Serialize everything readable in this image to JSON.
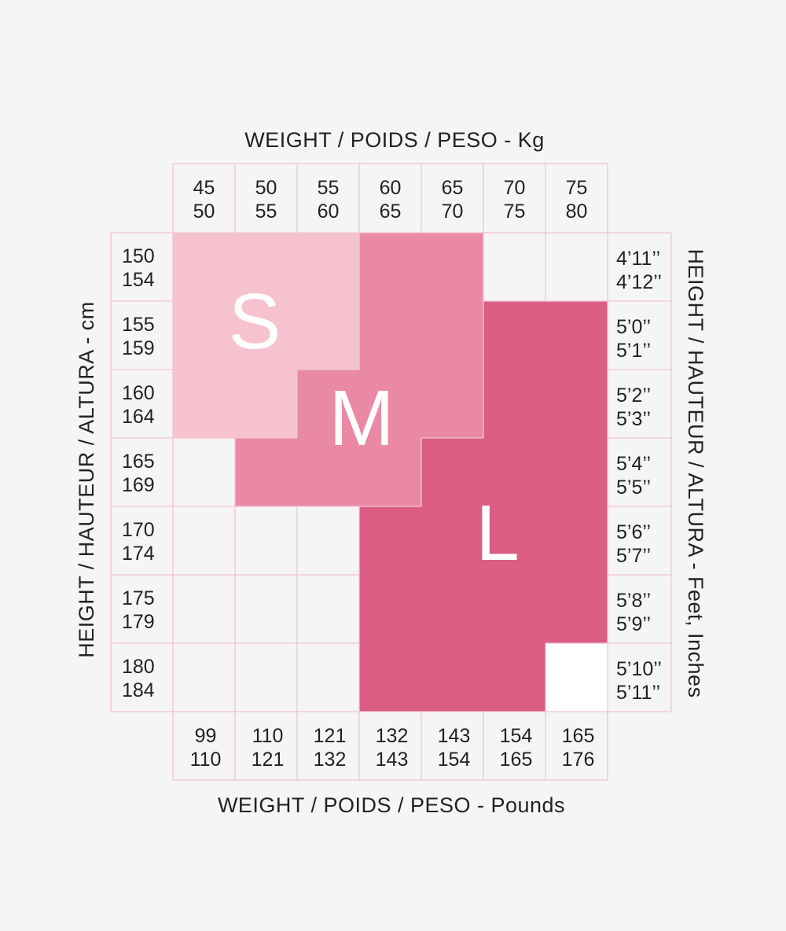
{
  "chart_data": {
    "type": "heatmap",
    "title_top": "WEIGHT / POIDS / PESO - Kg",
    "title_bottom": "WEIGHT / POIDS / PESO - Pounds",
    "title_left": "HEIGHT / HAUTEUR / ALTURA - cm",
    "title_right": "HEIGHT / HAUTEUR / ALTURA - Feet, Inches",
    "weight_kg": [
      [
        "45",
        "50"
      ],
      [
        "50",
        "55"
      ],
      [
        "55",
        "60"
      ],
      [
        "60",
        "65"
      ],
      [
        "65",
        "70"
      ],
      [
        "70",
        "75"
      ],
      [
        "75",
        "80"
      ]
    ],
    "weight_lb": [
      [
        "99",
        "110"
      ],
      [
        "110",
        "121"
      ],
      [
        "121",
        "132"
      ],
      [
        "132",
        "143"
      ],
      [
        "143",
        "154"
      ],
      [
        "154",
        "165"
      ],
      [
        "165",
        "176"
      ]
    ],
    "height_cm": [
      [
        "150",
        "154"
      ],
      [
        "155",
        "159"
      ],
      [
        "160",
        "164"
      ],
      [
        "165",
        "169"
      ],
      [
        "170",
        "174"
      ],
      [
        "175",
        "179"
      ],
      [
        "180",
        "184"
      ]
    ],
    "height_ft": [
      [
        "4’11’’",
        "4’12’’"
      ],
      [
        "5’0’’",
        "5’1’’"
      ],
      [
        "5’2’’",
        "5’3’’"
      ],
      [
        "5’4’’",
        "5’5’’"
      ],
      [
        "5’6’’",
        "5’7’’"
      ],
      [
        "5’8’’",
        "5’9’’"
      ],
      [
        "5’10’’",
        "5’11’’"
      ]
    ],
    "size_labels": {
      "S": "S",
      "M": "M",
      "L": "L"
    },
    "size_colors": {
      "S": "#f6c2cf",
      "M": "#e989a5",
      "L": "#db5d84",
      "blank": "#f5f5f5",
      "white": "#ffffff"
    },
    "grid_color": "#f2c4d1",
    "size_grid": [
      [
        "S",
        "S",
        "S",
        "M",
        "M",
        "",
        ""
      ],
      [
        "S",
        "S",
        "S",
        "M",
        "M",
        "L",
        "L"
      ],
      [
        "S",
        "S",
        "M",
        "M",
        "M",
        "L",
        "L"
      ],
      [
        "",
        "M",
        "M",
        "M",
        "L",
        "L",
        "L"
      ],
      [
        "",
        "",
        "",
        "L",
        "L",
        "L",
        "L"
      ],
      [
        "",
        "",
        "",
        "L",
        "L",
        "L",
        "L"
      ],
      [
        "",
        "",
        "",
        "L",
        "L",
        "L",
        "W"
      ]
    ]
  }
}
